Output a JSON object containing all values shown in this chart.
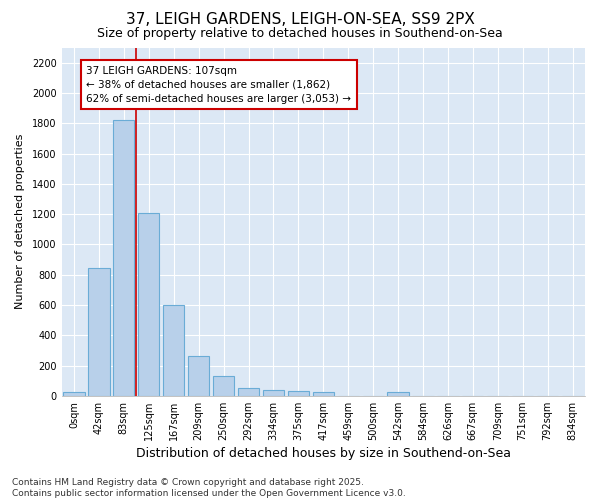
{
  "title": "37, LEIGH GARDENS, LEIGH-ON-SEA, SS9 2PX",
  "subtitle": "Size of property relative to detached houses in Southend-on-Sea",
  "xlabel": "Distribution of detached houses by size in Southend-on-Sea",
  "ylabel": "Number of detached properties",
  "bar_labels": [
    "0sqm",
    "42sqm",
    "83sqm",
    "125sqm",
    "167sqm",
    "209sqm",
    "250sqm",
    "292sqm",
    "334sqm",
    "375sqm",
    "417sqm",
    "459sqm",
    "500sqm",
    "542sqm",
    "584sqm",
    "626sqm",
    "667sqm",
    "709sqm",
    "751sqm",
    "792sqm",
    "834sqm"
  ],
  "bar_values": [
    25,
    845,
    1820,
    1210,
    600,
    260,
    130,
    50,
    40,
    32,
    22,
    0,
    0,
    25,
    0,
    0,
    0,
    0,
    0,
    0,
    0
  ],
  "bar_color": "#b8d0ea",
  "bar_edge_color": "#6aacd6",
  "fig_background": "#ffffff",
  "ax_background": "#dce8f5",
  "grid_color": "#ffffff",
  "vline_x_index": 2,
  "vline_color": "#cc0000",
  "annotation_text": "37 LEIGH GARDENS: 107sqm\n← 38% of detached houses are smaller (1,862)\n62% of semi-detached houses are larger (3,053) →",
  "annotation_box_edgecolor": "#cc0000",
  "annotation_box_facecolor": "#ffffff",
  "ylim": [
    0,
    2300
  ],
  "yticks": [
    0,
    200,
    400,
    600,
    800,
    1000,
    1200,
    1400,
    1600,
    1800,
    2000,
    2200
  ],
  "footer": "Contains HM Land Registry data © Crown copyright and database right 2025.\nContains public sector information licensed under the Open Government Licence v3.0.",
  "title_fontsize": 11,
  "subtitle_fontsize": 9,
  "xlabel_fontsize": 9,
  "ylabel_fontsize": 8,
  "tick_fontsize": 7,
  "annotation_fontsize": 7.5,
  "footer_fontsize": 6.5
}
